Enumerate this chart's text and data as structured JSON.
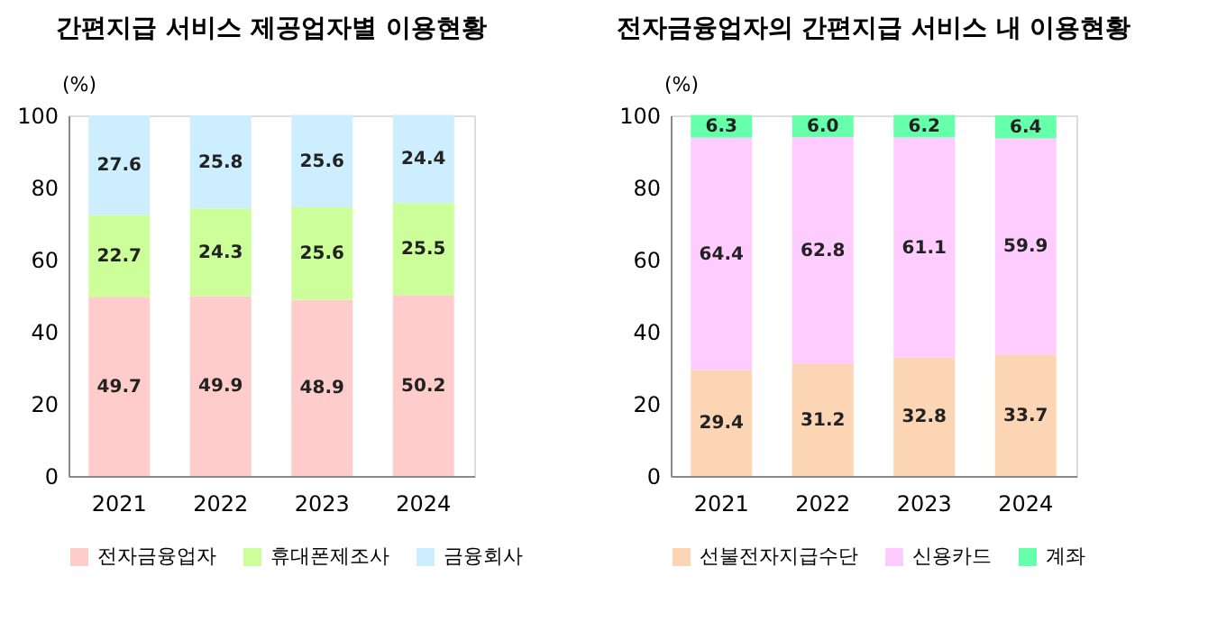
{
  "chart_data": [
    {
      "type": "bar",
      "title": "간편지급 서비스 제공업자별 이용현황",
      "ylabel": "(%)",
      "categories": [
        "2021",
        "2022",
        "2023",
        "2024"
      ],
      "stacked": true,
      "ylim": [
        0,
        100
      ],
      "yticks": [
        0,
        20,
        40,
        60,
        80,
        100
      ],
      "data_labels": true,
      "legend": "bottom",
      "grid": false,
      "series": [
        {
          "name": "전자금융업자",
          "color": "#ffcccc",
          "values": [
            49.7,
            49.9,
            48.9,
            50.2
          ]
        },
        {
          "name": "휴대폰제조사",
          "color": "#ccff99",
          "values": [
            22.7,
            24.3,
            25.6,
            25.5
          ]
        },
        {
          "name": "금융회사",
          "color": "#cceeff",
          "values": [
            27.6,
            25.8,
            25.6,
            24.4
          ]
        }
      ]
    },
    {
      "type": "bar",
      "title": "전자금융업자의 간편지급 서비스 내 이용현황",
      "ylabel": "(%)",
      "categories": [
        "2021",
        "2022",
        "2023",
        "2024"
      ],
      "stacked": true,
      "ylim": [
        0,
        100
      ],
      "yticks": [
        0,
        20,
        40,
        60,
        80,
        100
      ],
      "legend": "bottom",
      "grid": false,
      "series": [
        {
          "name": "선불전자지급수단",
          "color": "#fcd5b4",
          "values": [
            29.4,
            31.2,
            32.8,
            33.7
          ],
          "value_labels": [
            "29.4",
            "31.2",
            "32.8",
            "33.7"
          ]
        },
        {
          "name": "신용카드",
          "color": "#ffccff",
          "values": [
            64.4,
            62.8,
            61.1,
            59.9
          ],
          "value_labels": [
            "64.4",
            "62.8",
            "61.1",
            "59.9"
          ]
        },
        {
          "name": "계좌",
          "color": "#66ffaa",
          "values": [
            6.3,
            6.0,
            6.2,
            6.4
          ],
          "value_labels": [
            "6.3",
            "6.0",
            "6.2",
            "6.4"
          ]
        }
      ]
    }
  ]
}
